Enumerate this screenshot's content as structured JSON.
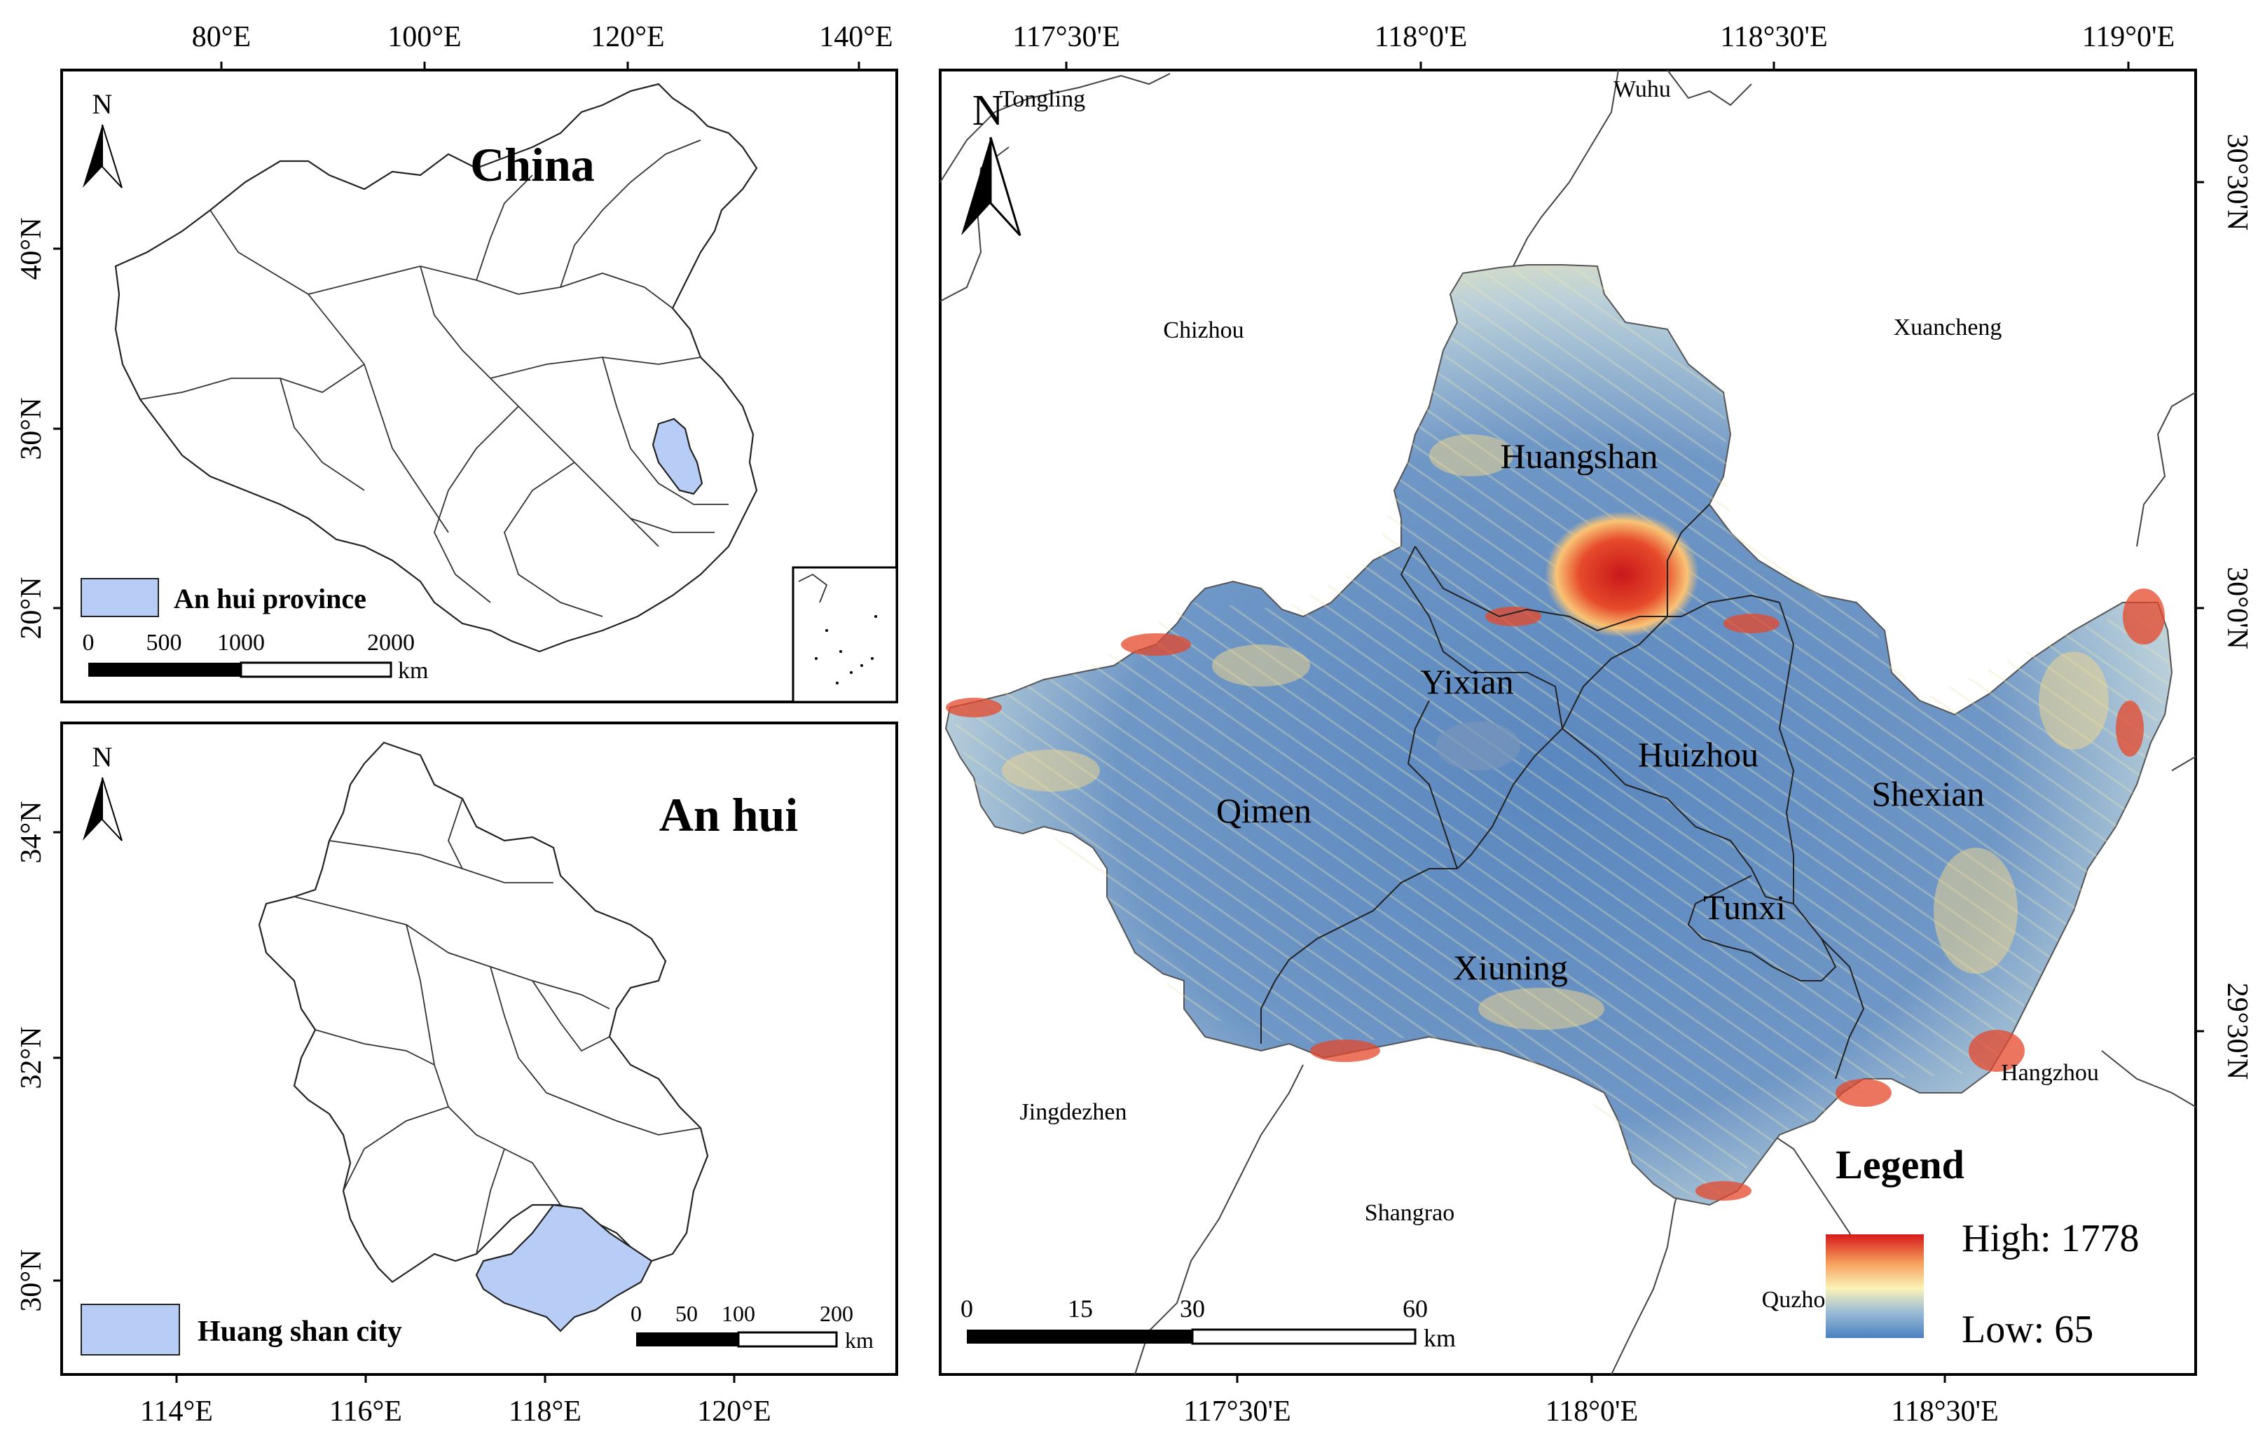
{
  "china_inset": {
    "title": "China",
    "lon_ticks": [
      "80°E",
      "100°E",
      "120°E",
      "140°E"
    ],
    "lat_ticks": [
      "40°N",
      "30°N",
      "20°N"
    ],
    "legend_label": "An hui province",
    "legend_color": "#b8cdf5",
    "scale_ticks": [
      "0",
      "500",
      "1000",
      "2000"
    ],
    "scale_unit": "km",
    "north": "N"
  },
  "anhui_inset": {
    "title": "An hui",
    "lon_ticks": [
      "114°E",
      "116°E",
      "118°E",
      "120°E"
    ],
    "lat_ticks": [
      "34°N",
      "32°N",
      "30°N"
    ],
    "legend_label": "Huang shan city",
    "legend_color": "#b8cdf5",
    "scale_ticks": [
      "0",
      "50",
      "100",
      "200"
    ],
    "scale_unit": "km",
    "north": "N"
  },
  "main_map": {
    "top_lon_ticks": [
      "117°30'E",
      "118°0'E",
      "118°30'E",
      "119°0'E"
    ],
    "bottom_lon_ticks": [
      "117°30'E",
      "118°0'E",
      "118°30'E"
    ],
    "lat_ticks": [
      "30°30'N",
      "30°0'N",
      "29°30'N"
    ],
    "north": "N",
    "neighbor_cities": [
      "Tongling",
      "Wuhu",
      "Chizhou",
      "Xuancheng",
      "Jingdezhen",
      "Hangzhou",
      "Shangrao",
      "Quzho"
    ],
    "counties": [
      "Huangshan",
      "Yixian",
      "Huizhou",
      "Qimen",
      "Shexian",
      "Tunxi",
      "Xiuning"
    ],
    "scale_ticks": [
      "0",
      "15",
      "30",
      "60"
    ],
    "scale_unit": "km",
    "legend": {
      "title": "Legend",
      "high": "High: 1778",
      "low": "Low: 65",
      "ramp_colors": [
        "#d7191c",
        "#f6a05c",
        "#fbf3b8",
        "#9bbcd6",
        "#4a7fc0"
      ]
    }
  }
}
